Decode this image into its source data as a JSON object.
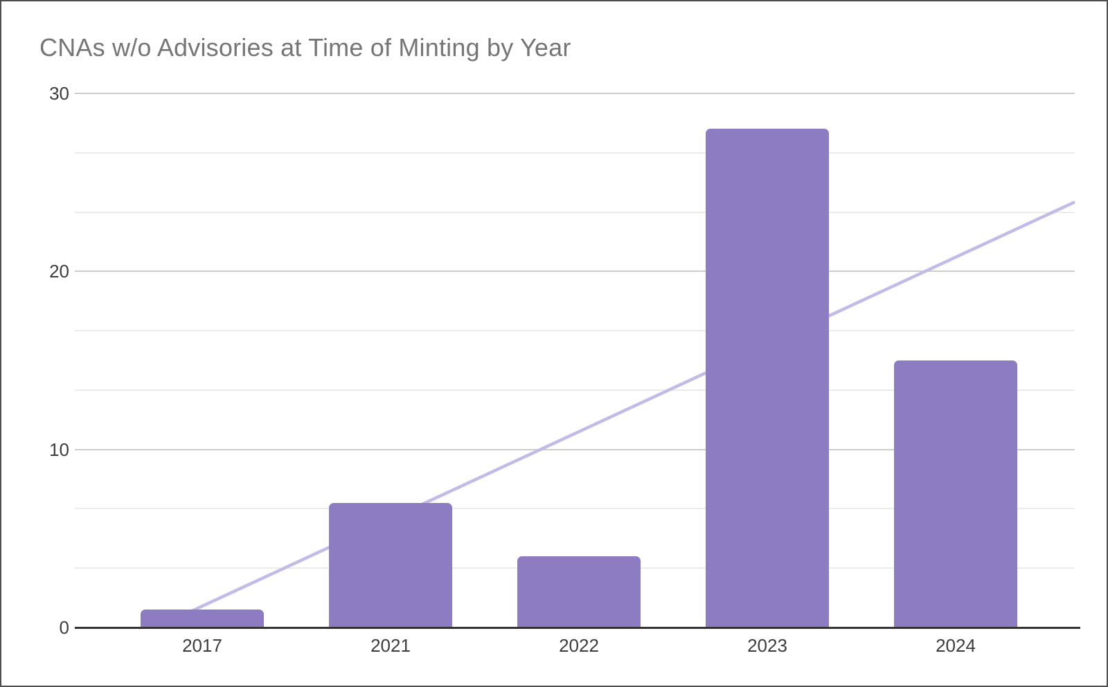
{
  "window": {
    "background": "#ffffff",
    "border_color": "#4d4d4d"
  },
  "chart_data": {
    "type": "bar",
    "title": "CNAs w/o Advisories at Time of Minting by Year",
    "categories": [
      "2017",
      "2021",
      "2022",
      "2023",
      "2024"
    ],
    "values": [
      1,
      7,
      4,
      28,
      15
    ],
    "xlabel": "",
    "ylabel": "",
    "y_ticks": [
      0,
      10,
      20,
      30
    ],
    "ylim": [
      0,
      30
    ],
    "minor_gridlines_between_major": 2,
    "grid": true,
    "legend": "none",
    "bar_color": "#8e7cc3",
    "trendline": {
      "type": "linear",
      "color": "#c4bae7",
      "slope_per_category_index": 4.9,
      "intercept": 1.2
    },
    "title_color": "#757575",
    "axis_text_color": "#3c3c3c",
    "major_gridline_color": "#cccccc",
    "minor_gridline_color": "#ebebeb",
    "axis_line_color": "#333333"
  }
}
